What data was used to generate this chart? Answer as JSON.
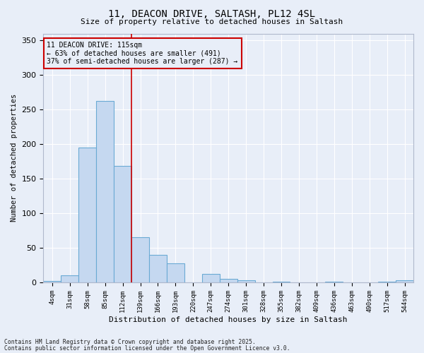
{
  "title_line1": "11, DEACON DRIVE, SALTASH, PL12 4SL",
  "title_line2": "Size of property relative to detached houses in Saltash",
  "xlabel": "Distribution of detached houses by size in Saltash",
  "ylabel": "Number of detached properties",
  "bar_labels": [
    "4sqm",
    "31sqm",
    "58sqm",
    "85sqm",
    "112sqm",
    "139sqm",
    "166sqm",
    "193sqm",
    "220sqm",
    "247sqm",
    "274sqm",
    "301sqm",
    "328sqm",
    "355sqm",
    "382sqm",
    "409sqm",
    "436sqm",
    "463sqm",
    "490sqm",
    "517sqm",
    "544sqm"
  ],
  "bar_values": [
    2,
    10,
    195,
    262,
    168,
    65,
    40,
    28,
    0,
    12,
    5,
    3,
    0,
    1,
    0,
    0,
    1,
    0,
    0,
    1,
    3
  ],
  "bar_color": "#c5d8f0",
  "bar_edge_color": "#6aaad4",
  "background_color": "#e8eef8",
  "grid_color": "#ffffff",
  "vline_x": 4.5,
  "vline_color": "#cc0000",
  "annotation_text": "11 DEACON DRIVE: 115sqm\n← 63% of detached houses are smaller (491)\n37% of semi-detached houses are larger (287) →",
  "annotation_box_color": "#cc0000",
  "footer_line1": "Contains HM Land Registry data © Crown copyright and database right 2025.",
  "footer_line2": "Contains public sector information licensed under the Open Government Licence v3.0.",
  "ylim": [
    0,
    360
  ],
  "yticks": [
    0,
    50,
    100,
    150,
    200,
    250,
    300,
    350
  ]
}
